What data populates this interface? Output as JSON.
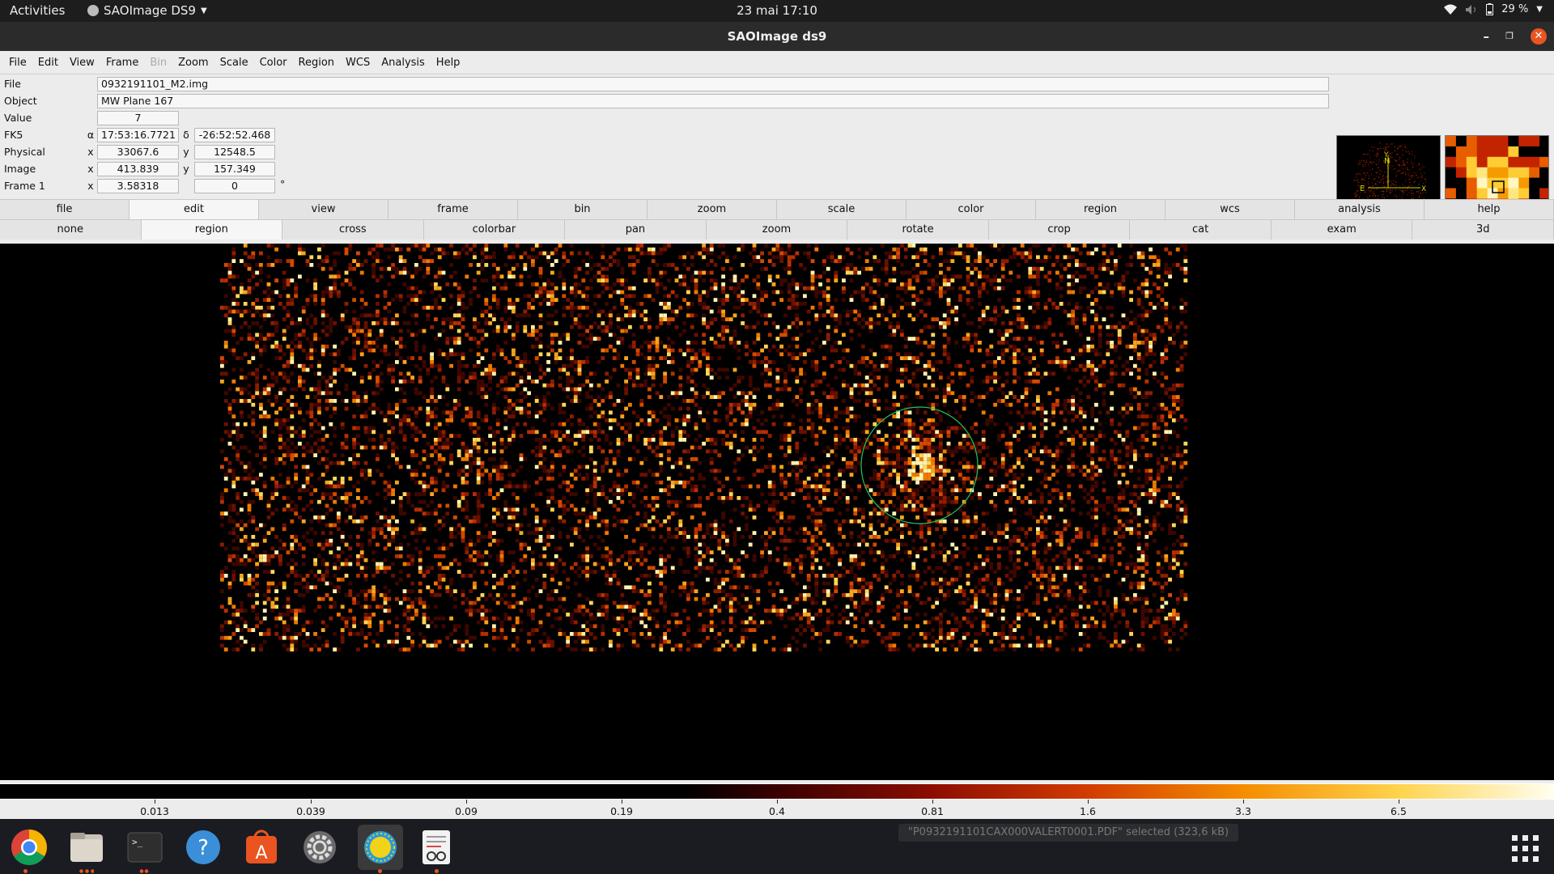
{
  "topbar": {
    "activities": "Activities",
    "app_name": "SAOImage DS9",
    "clock": "23 mai  17:10",
    "battery": "29 %"
  },
  "window": {
    "title": "SAOImage ds9"
  },
  "menubar": [
    "File",
    "Edit",
    "View",
    "Frame",
    "Bin",
    "Zoom",
    "Scale",
    "Color",
    "Region",
    "WCS",
    "Analysis",
    "Help"
  ],
  "menubar_disabled": [
    "Bin"
  ],
  "info": {
    "file_label": "File",
    "file_value": "0932191101_M2.img",
    "object_label": "Object",
    "object_value": "MW Plane 167",
    "value_label": "Value",
    "value_value": "7",
    "fk5_label": "FK5",
    "fk5_alpha_sym": "α",
    "fk5_alpha": "17:53:16.7721",
    "fk5_delta_sym": "δ",
    "fk5_delta": "-26:52:52.468",
    "physical_label": "Physical",
    "physical_x_sym": "x",
    "physical_x": "33067.6",
    "physical_y_sym": "y",
    "physical_y": "12548.5",
    "image_label": "Image",
    "image_x_sym": "x",
    "image_x": "413.839",
    "image_y_sym": "y",
    "image_y": "157.349",
    "frame_label": "Frame 1",
    "frame_x_sym": "x",
    "frame_zoom": "3.58318",
    "frame_angle": "0",
    "frame_deg": "°"
  },
  "panner": {
    "north": "N",
    "east": "E",
    "x_axis": "X",
    "y_axis": "Y"
  },
  "buttonbar_main": [
    "file",
    "edit",
    "view",
    "frame",
    "bin",
    "zoom",
    "scale",
    "color",
    "region",
    "wcs",
    "analysis",
    "help"
  ],
  "buttonbar_main_selected": "edit",
  "buttonbar_mode": [
    "none",
    "region",
    "cross",
    "colorbar",
    "pan",
    "zoom",
    "rotate",
    "crop",
    "cat",
    "exam",
    "3d"
  ],
  "buttonbar_mode_selected": "region",
  "colorbar": {
    "colormap": "heat",
    "ticks": [
      "0.013",
      "0.039",
      "0.09",
      "0.19",
      "0.4",
      "0.81",
      "1.6",
      "3.3",
      "6.5"
    ]
  },
  "region": {
    "shape": "circle",
    "color": "#22c55e"
  },
  "dock": {
    "apps": [
      "chrome-icon",
      "files-icon",
      "terminal-icon",
      "help-icon",
      "software-icon",
      "settings-icon",
      "ds9-icon",
      "document-viewer-icon"
    ],
    "notification": "\"P0932191101CAX000VALERT0001.PDF\" selected  (323,6 kB)"
  }
}
